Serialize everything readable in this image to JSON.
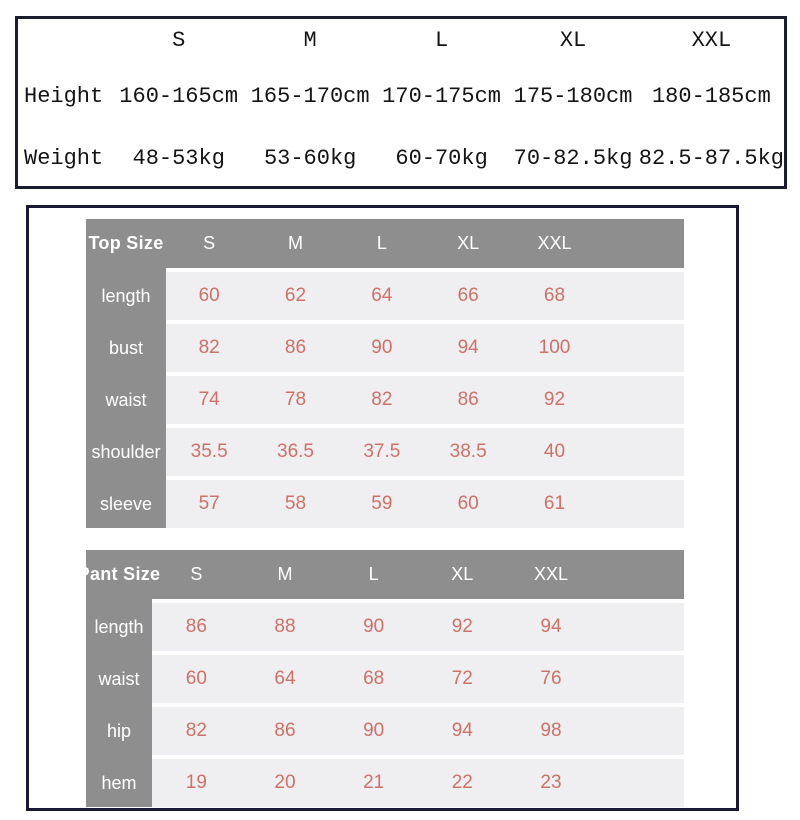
{
  "colors": {
    "height_table_border": "#1c1c30",
    "height_table_text": "#141414",
    "size_box_border": "#191933",
    "table_gray": "#8e8e8e",
    "row_background": "#efeef0",
    "value_color": "#cd7268",
    "header_text": "#ffffff"
  },
  "chart_data": [
    {
      "type": "table",
      "name": "height-weight-table",
      "title": "",
      "columns": [
        "S",
        "M",
        "L",
        "XL",
        "XXL"
      ],
      "row_labels": [
        "Height",
        "Weight"
      ],
      "rows": [
        [
          "160-165cm",
          "165-170cm",
          "170-175cm",
          "175-180cm",
          "180-185cm"
        ],
        [
          "48-53kg",
          "53-60kg",
          "60-70kg",
          "70-82.5kg",
          "82.5-87.5kg"
        ]
      ]
    },
    {
      "type": "table",
      "name": "top-size-table",
      "title": "Top Size",
      "columns": [
        "S",
        "M",
        "L",
        "XL",
        "XXL"
      ],
      "row_labels": [
        "length",
        "bust",
        "waist",
        "shoulder",
        "sleeve"
      ],
      "rows": [
        [
          "60",
          "62",
          "64",
          "66",
          "68"
        ],
        [
          "82",
          "86",
          "90",
          "94",
          "100"
        ],
        [
          "74",
          "78",
          "82",
          "86",
          "92"
        ],
        [
          "35.5",
          "36.5",
          "37.5",
          "38.5",
          "40"
        ],
        [
          "57",
          "58",
          "59",
          "60",
          "61"
        ]
      ]
    },
    {
      "type": "table",
      "name": "pant-size-table",
      "title": "Pant Size",
      "columns": [
        "S",
        "M",
        "L",
        "XL",
        "XXL"
      ],
      "row_labels": [
        "length",
        "waist",
        "hip",
        "hem"
      ],
      "rows": [
        [
          "86",
          "88",
          "90",
          "92",
          "94"
        ],
        [
          "60",
          "64",
          "68",
          "72",
          "76"
        ],
        [
          "82",
          "86",
          "90",
          "94",
          "98"
        ],
        [
          "19",
          "20",
          "21",
          "22",
          "23"
        ]
      ]
    }
  ]
}
